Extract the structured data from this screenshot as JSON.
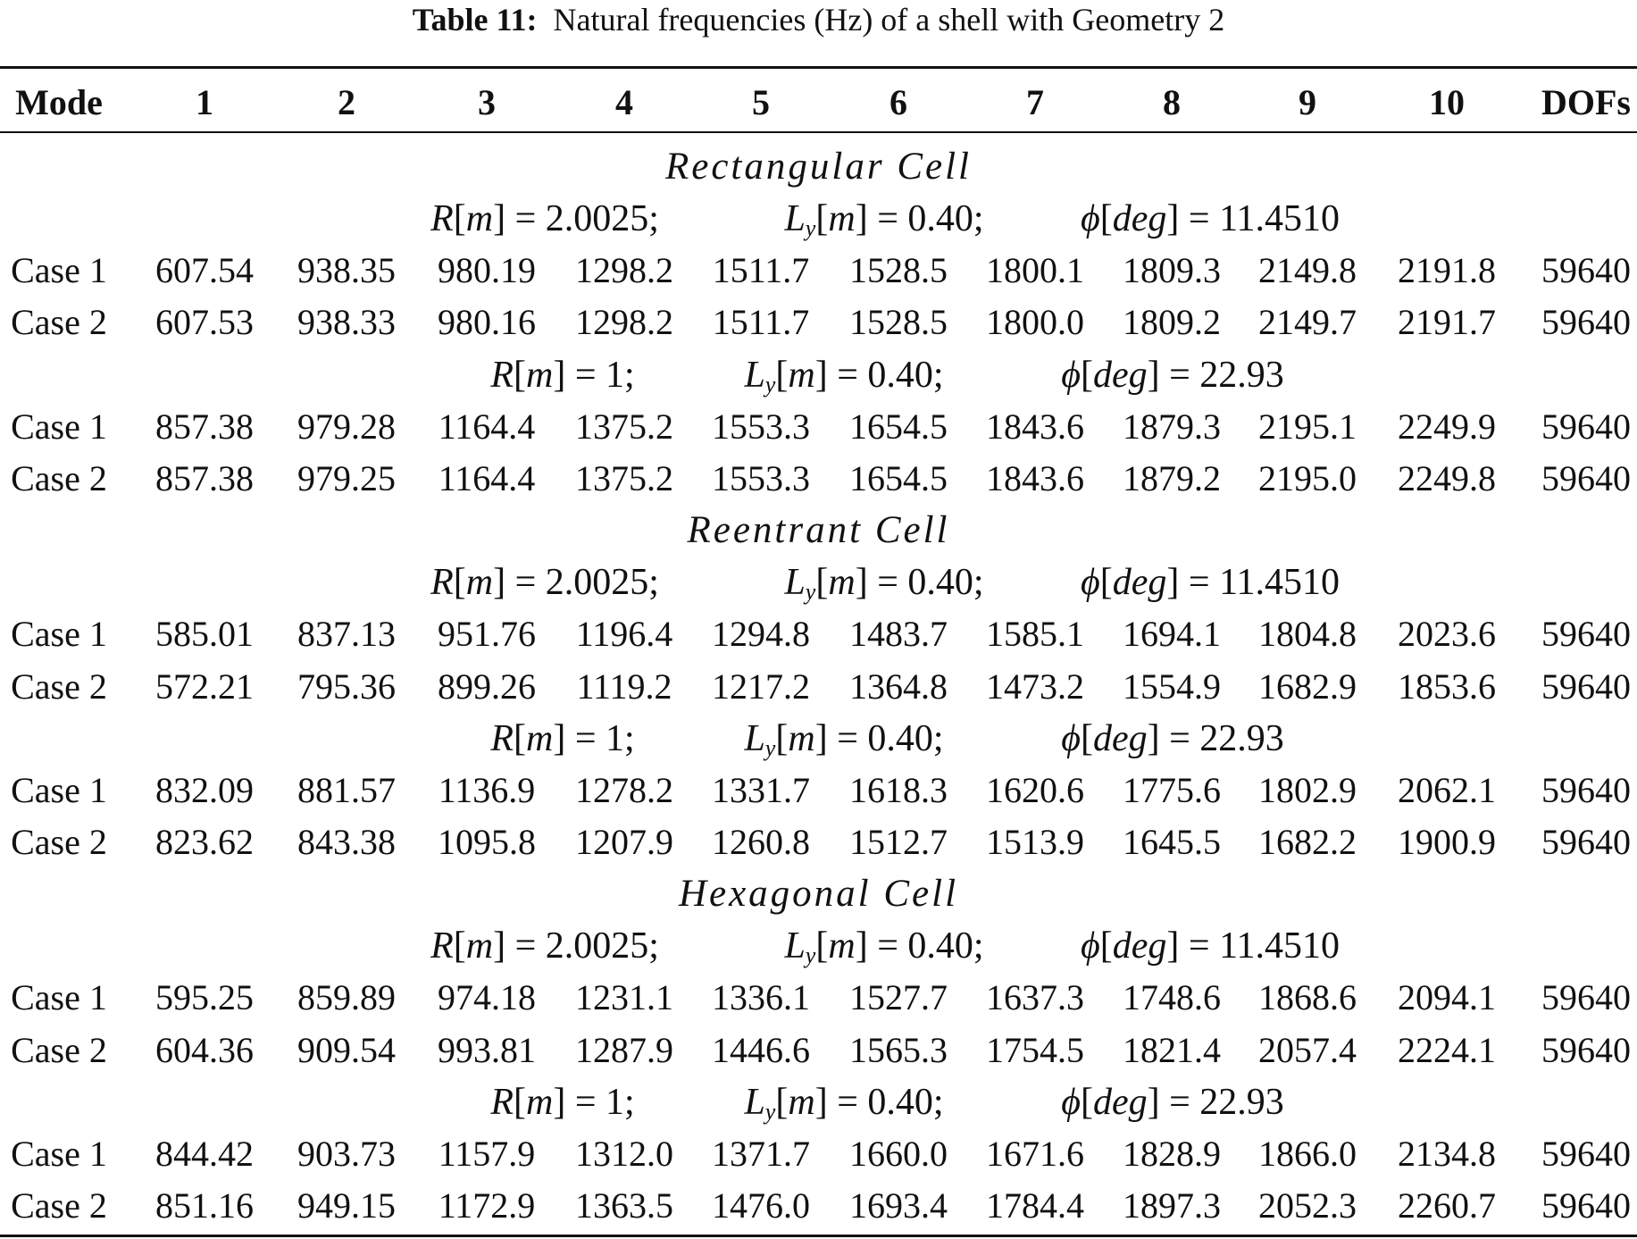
{
  "caption": {
    "label": "Table 11:",
    "text": "Natural frequencies (Hz) of a shell with Geometry 2"
  },
  "header": [
    "Mode",
    "1",
    "2",
    "3",
    "4",
    "5",
    "6",
    "7",
    "8",
    "9",
    "10",
    "DOFs"
  ],
  "param_sets": {
    "a": {
      "R_var": "R",
      "R_unit": "m",
      "R_val": "= 2.0025;",
      "L_var": "L",
      "L_sub": "y",
      "L_unit": "m",
      "L_val": "= 0.40;",
      "phi_var": "ϕ",
      "phi_unit": "deg",
      "phi_val": "= 11.4510"
    },
    "b": {
      "R_var": "R",
      "R_unit": "m",
      "R_val": "= 1;",
      "L_var": "L",
      "L_sub": "y",
      "L_unit": "m",
      "L_val": "= 0.40;",
      "phi_var": "ϕ",
      "phi_unit": "deg",
      "phi_val": "= 22.93"
    }
  },
  "sections": [
    {
      "title": "Rectangular Cell",
      "groups": [
        {
          "rows": [
            [
              "Case 1",
              "607.54",
              "938.35",
              "980.19",
              "1298.2",
              "1511.7",
              "1528.5",
              "1800.1",
              "1809.3",
              "2149.8",
              "2191.8",
              "59640"
            ],
            [
              "Case 2",
              "607.53",
              "938.33",
              "980.16",
              "1298.2",
              "1511.7",
              "1528.5",
              "1800.0",
              "1809.2",
              "2149.7",
              "2191.7",
              "59640"
            ]
          ]
        },
        {
          "rows": [
            [
              "Case 1",
              "857.38",
              "979.28",
              "1164.4",
              "1375.2",
              "1553.3",
              "1654.5",
              "1843.6",
              "1879.3",
              "2195.1",
              "2249.9",
              "59640"
            ],
            [
              "Case 2",
              "857.38",
              "979.25",
              "1164.4",
              "1375.2",
              "1553.3",
              "1654.5",
              "1843.6",
              "1879.2",
              "2195.0",
              "2249.8",
              "59640"
            ]
          ]
        }
      ]
    },
    {
      "title": "Reentrant Cell",
      "groups": [
        {
          "rows": [
            [
              "Case 1",
              "585.01",
              "837.13",
              "951.76",
              "1196.4",
              "1294.8",
              "1483.7",
              "1585.1",
              "1694.1",
              "1804.8",
              "2023.6",
              "59640"
            ],
            [
              "Case 2",
              "572.21",
              "795.36",
              "899.26",
              "1119.2",
              "1217.2",
              "1364.8",
              "1473.2",
              "1554.9",
              "1682.9",
              "1853.6",
              "59640"
            ]
          ]
        },
        {
          "rows": [
            [
              "Case 1",
              "832.09",
              "881.57",
              "1136.9",
              "1278.2",
              "1331.7",
              "1618.3",
              "1620.6",
              "1775.6",
              "1802.9",
              "2062.1",
              "59640"
            ],
            [
              "Case 2",
              "823.62",
              "843.38",
              "1095.8",
              "1207.9",
              "1260.8",
              "1512.7",
              "1513.9",
              "1645.5",
              "1682.2",
              "1900.9",
              "59640"
            ]
          ]
        }
      ]
    },
    {
      "title": "Hexagonal Cell",
      "groups": [
        {
          "rows": [
            [
              "Case 1",
              "595.25",
              "859.89",
              "974.18",
              "1231.1",
              "1336.1",
              "1527.7",
              "1637.3",
              "1748.6",
              "1868.6",
              "2094.1",
              "59640"
            ],
            [
              "Case 2",
              "604.36",
              "909.54",
              "993.81",
              "1287.9",
              "1446.6",
              "1565.3",
              "1754.5",
              "1821.4",
              "2057.4",
              "2224.1",
              "59640"
            ]
          ]
        },
        {
          "rows": [
            [
              "Case 1",
              "844.42",
              "903.73",
              "1157.9",
              "1312.0",
              "1371.7",
              "1660.0",
              "1671.6",
              "1828.9",
              "1866.0",
              "2134.8",
              "59640"
            ],
            [
              "Case 2",
              "851.16",
              "949.15",
              "1172.9",
              "1363.5",
              "1476.0",
              "1693.4",
              "1784.4",
              "1897.3",
              "2052.3",
              "2260.7",
              "59640"
            ]
          ]
        }
      ]
    }
  ]
}
